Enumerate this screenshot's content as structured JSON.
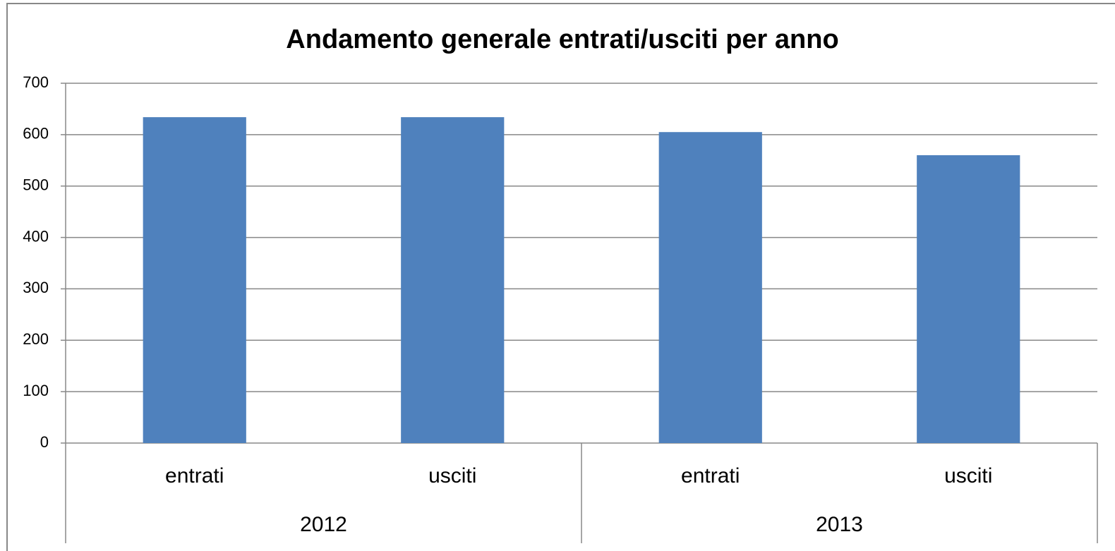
{
  "chart_data": {
    "type": "bar",
    "title": "Andamento generale entrati/usciti per anno",
    "categories": [
      "entrati",
      "usciti",
      "entrati",
      "usciti"
    ],
    "groups": [
      "2012",
      "2013"
    ],
    "values": [
      634,
      634,
      605,
      560
    ],
    "color": "#4f81bd",
    "ylim": [
      0,
      700
    ],
    "yticks": [
      0,
      100,
      200,
      300,
      400,
      500,
      600,
      700
    ],
    "grid": true
  }
}
